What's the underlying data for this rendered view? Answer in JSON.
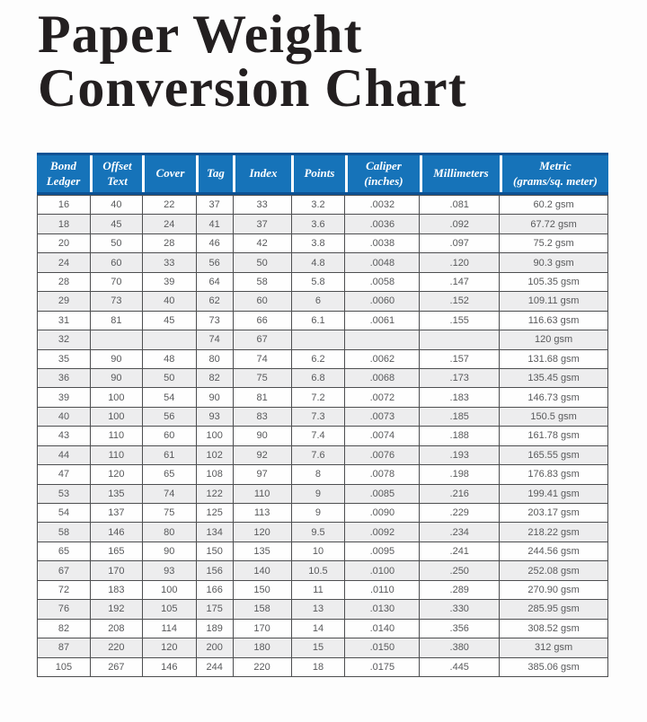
{
  "page": {
    "title_lines": [
      "Paper Weight",
      "Conversion Chart"
    ]
  },
  "colors": {
    "header_blue": "#1673b9",
    "header_rule_dark_blue": "#0d5294",
    "header_text": "#ffffff",
    "row_white": "#fefefe",
    "row_alt_gray": "#ededee",
    "grid_line_gray": "#4d4e50",
    "body_text_gray": "#58595b",
    "title_text": "#231f20",
    "page_background": "#fdfdfd"
  },
  "table": {
    "columns": [
      {
        "id": "bond-ledger",
        "label_lines": [
          "Bond",
          "Ledger"
        ]
      },
      {
        "id": "offset-text",
        "label_lines": [
          "Offset",
          "Text"
        ]
      },
      {
        "id": "cover",
        "label_lines": [
          "Cover"
        ]
      },
      {
        "id": "tag",
        "label_lines": [
          "Tag"
        ]
      },
      {
        "id": "index",
        "label_lines": [
          "Index"
        ]
      },
      {
        "id": "points",
        "label_lines": [
          "Points"
        ]
      },
      {
        "id": "caliper",
        "label_lines": [
          "Caliper",
          "(inches)"
        ]
      },
      {
        "id": "millimeters",
        "label_lines": [
          "Millimeters"
        ]
      },
      {
        "id": "metric",
        "label_lines": [
          "Metric",
          "(grams/sq. meter)"
        ]
      }
    ],
    "rows": [
      [
        "16",
        "40",
        "22",
        "37",
        "33",
        "3.2",
        ".0032",
        ".081",
        "60.2 gsm"
      ],
      [
        "18",
        "45",
        "24",
        "41",
        "37",
        "3.6",
        ".0036",
        ".092",
        "67.72 gsm"
      ],
      [
        "20",
        "50",
        "28",
        "46",
        "42",
        "3.8",
        ".0038",
        ".097",
        "75.2 gsm"
      ],
      [
        "24",
        "60",
        "33",
        "56",
        "50",
        "4.8",
        ".0048",
        ".120",
        "90.3 gsm"
      ],
      [
        "28",
        "70",
        "39",
        "64",
        "58",
        "5.8",
        ".0058",
        ".147",
        "105.35 gsm"
      ],
      [
        "29",
        "73",
        "40",
        "62",
        "60",
        "6",
        ".0060",
        ".152",
        "109.11 gsm"
      ],
      [
        "31",
        "81",
        "45",
        "73",
        "66",
        "6.1",
        ".0061",
        ".155",
        "116.63 gsm"
      ],
      [
        "32",
        "",
        "",
        "74",
        "67",
        "",
        "",
        "",
        "120 gsm"
      ],
      [
        "35",
        "90",
        "48",
        "80",
        "74",
        "6.2",
        ".0062",
        ".157",
        "131.68 gsm"
      ],
      [
        "36",
        "90",
        "50",
        "82",
        "75",
        "6.8",
        ".0068",
        ".173",
        "135.45 gsm"
      ],
      [
        "39",
        "100",
        "54",
        "90",
        "81",
        "7.2",
        ".0072",
        ".183",
        "146.73 gsm"
      ],
      [
        "40",
        "100",
        "56",
        "93",
        "83",
        "7.3",
        ".0073",
        ".185",
        "150.5 gsm"
      ],
      [
        "43",
        "110",
        "60",
        "100",
        "90",
        "7.4",
        ".0074",
        ".188",
        "161.78 gsm"
      ],
      [
        "44",
        "110",
        "61",
        "102",
        "92",
        "7.6",
        ".0076",
        ".193",
        "165.55 gsm"
      ],
      [
        "47",
        "120",
        "65",
        "108",
        "97",
        "8",
        ".0078",
        ".198",
        "176.83 gsm"
      ],
      [
        "53",
        "135",
        "74",
        "122",
        "110",
        "9",
        ".0085",
        ".216",
        "199.41 gsm"
      ],
      [
        "54",
        "137",
        "75",
        "125",
        "113",
        "9",
        ".0090",
        ".229",
        "203.17 gsm"
      ],
      [
        "58",
        "146",
        "80",
        "134",
        "120",
        "9.5",
        ".0092",
        ".234",
        "218.22 gsm"
      ],
      [
        "65",
        "165",
        "90",
        "150",
        "135",
        "10",
        ".0095",
        ".241",
        "244.56 gsm"
      ],
      [
        "67",
        "170",
        "93",
        "156",
        "140",
        "10.5",
        ".0100",
        ".250",
        "252.08 gsm"
      ],
      [
        "72",
        "183",
        "100",
        "166",
        "150",
        "11",
        ".0110",
        ".289",
        "270.90 gsm"
      ],
      [
        "76",
        "192",
        "105",
        "175",
        "158",
        "13",
        ".0130",
        ".330",
        "285.95 gsm"
      ],
      [
        "82",
        "208",
        "114",
        "189",
        "170",
        "14",
        ".0140",
        ".356",
        "308.52 gsm"
      ],
      [
        "87",
        "220",
        "120",
        "200",
        "180",
        "15",
        ".0150",
        ".380",
        "312 gsm"
      ],
      [
        "105",
        "267",
        "146",
        "244",
        "220",
        "18",
        ".0175",
        ".445",
        "385.06 gsm"
      ]
    ]
  }
}
